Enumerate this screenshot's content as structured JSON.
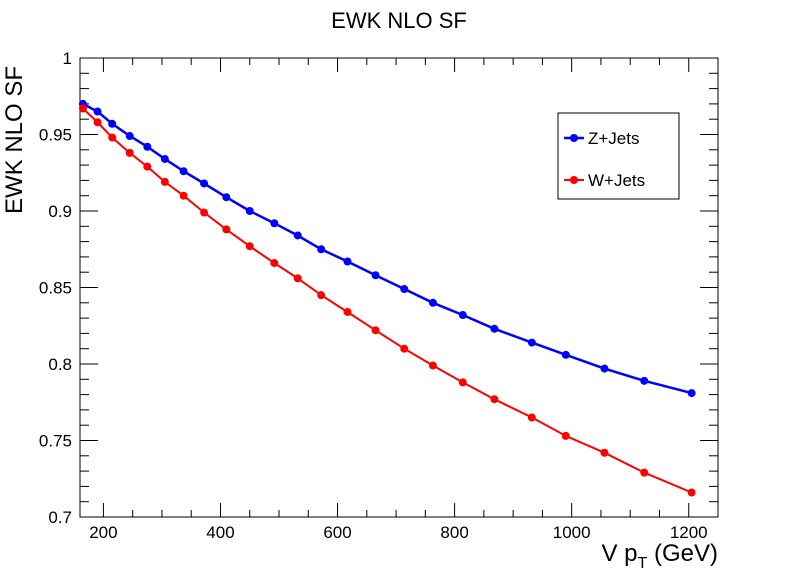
{
  "chart_data": {
    "type": "line",
    "title": "EWK NLO SF",
    "xlabel": "V p_T (GeV)",
    "xlabel_main": "V p",
    "xlabel_sub": "T",
    "xlabel_tail": " (GeV)",
    "ylabel": "EWK NLO SF",
    "xlim": [
      160,
      1250
    ],
    "ylim": [
      0.7,
      1.0
    ],
    "x_ticks": [
      200,
      400,
      600,
      800,
      1000,
      1200
    ],
    "y_ticks": [
      0.7,
      0.75,
      0.8,
      0.85,
      0.9,
      0.95,
      1.0
    ],
    "x_tick_labels": [
      "200",
      "400",
      "600",
      "800",
      "1000",
      "1200"
    ],
    "y_tick_labels": [
      "0.7",
      "0.75",
      "0.8",
      "0.85",
      "0.9",
      "0.95",
      "1"
    ],
    "grid": false,
    "legend_position": "top-right",
    "series": [
      {
        "name": "Z+Jets",
        "color": "#0000ff",
        "x": [
          165,
          190,
          215,
          245,
          275,
          305,
          337,
          372,
          410,
          450,
          492,
          532,
          572,
          617,
          665,
          714,
          763,
          814,
          868,
          932,
          990,
          1056,
          1124,
          1205
        ],
        "y": [
          0.97,
          0.965,
          0.957,
          0.949,
          0.942,
          0.934,
          0.926,
          0.918,
          0.909,
          0.9,
          0.892,
          0.884,
          0.875,
          0.867,
          0.858,
          0.849,
          0.84,
          0.832,
          0.823,
          0.814,
          0.806,
          0.797,
          0.789,
          0.781
        ]
      },
      {
        "name": "W+Jets",
        "color": "#ff0000",
        "x": [
          165,
          190,
          215,
          245,
          275,
          305,
          337,
          372,
          410,
          450,
          492,
          532,
          572,
          617,
          665,
          714,
          763,
          814,
          868,
          932,
          990,
          1056,
          1124,
          1205
        ],
        "y": [
          0.967,
          0.958,
          0.948,
          0.938,
          0.929,
          0.919,
          0.91,
          0.899,
          0.888,
          0.877,
          0.866,
          0.856,
          0.845,
          0.834,
          0.822,
          0.81,
          0.799,
          0.788,
          0.777,
          0.765,
          0.753,
          0.742,
          0.729,
          0.716
        ]
      }
    ]
  }
}
